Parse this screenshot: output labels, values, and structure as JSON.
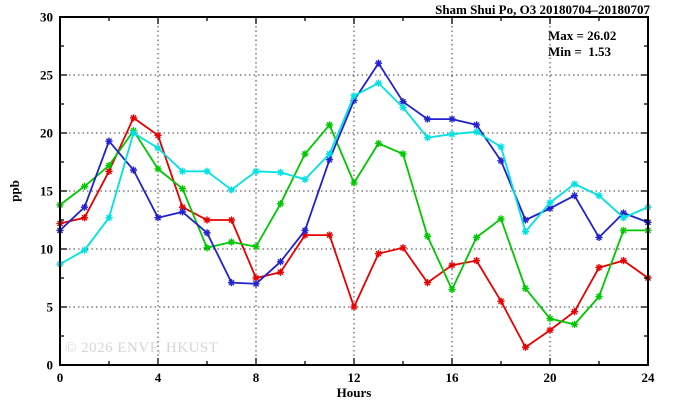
{
  "title": "Sham Shui Po, O3 20180704–20180707",
  "annotations": {
    "max_label": "Max = 26.02",
    "min_label": "Min =  1.53"
  },
  "watermark": "© 2026 ENVF, HKUST",
  "chart_data": {
    "type": "line",
    "title": "Sham Shui Po, O3 20180704–20180707",
    "xlabel": "Hours",
    "ylabel": "ppb",
    "xlim": [
      0,
      24
    ],
    "ylim": [
      0,
      30
    ],
    "grid": true,
    "legend": "none",
    "x_major_ticks": [
      0,
      4,
      8,
      12,
      16,
      20,
      24
    ],
    "x_minor_ticks": [
      2,
      6,
      10,
      14,
      18,
      22
    ],
    "y_major_ticks": [
      0,
      5,
      10,
      15,
      20,
      25,
      30
    ],
    "y_minor_ticks": [
      2.5,
      7.5,
      12.5,
      17.5,
      22.5,
      27.5
    ],
    "max_value": 26.02,
    "min_value": 1.53,
    "x": [
      0,
      1,
      2,
      3,
      4,
      5,
      6,
      7,
      8,
      9,
      10,
      11,
      12,
      13,
      14,
      15,
      16,
      17,
      18,
      19,
      20,
      21,
      22,
      23,
      24
    ],
    "series": [
      {
        "name": "red",
        "color": "#e60000",
        "values": [
          12.2,
          12.7,
          16.7,
          21.3,
          19.8,
          13.6,
          12.5,
          12.5,
          7.5,
          8.0,
          11.2,
          11.2,
          5.0,
          9.6,
          10.1,
          7.1,
          8.6,
          9.0,
          5.5,
          1.53,
          3.0,
          4.6,
          8.4,
          9.0,
          7.5
        ]
      },
      {
        "name": "green",
        "color": "#00c800",
        "values": [
          13.8,
          15.4,
          17.2,
          20.2,
          16.9,
          15.2,
          10.1,
          10.6,
          10.2,
          13.9,
          18.2,
          20.7,
          15.7,
          19.1,
          18.2,
          11.1,
          6.5,
          11.0,
          12.6,
          6.6,
          4.0,
          3.5,
          5.9,
          11.6,
          11.6
        ]
      },
      {
        "name": "blue",
        "color": "#2121cd",
        "values": [
          11.6,
          13.6,
          19.3,
          16.8,
          12.7,
          13.2,
          11.4,
          7.1,
          7.0,
          8.9,
          11.6,
          17.7,
          22.8,
          26.02,
          22.7,
          21.2,
          21.2,
          20.7,
          17.6,
          12.5,
          13.5,
          14.6,
          11.0,
          13.1,
          12.3
        ]
      },
      {
        "name": "cyan",
        "color": "#00e1e1",
        "values": [
          8.7,
          9.9,
          12.7,
          20.0,
          18.7,
          16.7,
          16.7,
          15.1,
          16.7,
          16.6,
          16.0,
          18.2,
          23.2,
          24.3,
          22.2,
          19.6,
          19.9,
          20.1,
          18.8,
          11.5,
          14.0,
          15.6,
          14.6,
          12.7,
          13.6
        ]
      }
    ]
  }
}
